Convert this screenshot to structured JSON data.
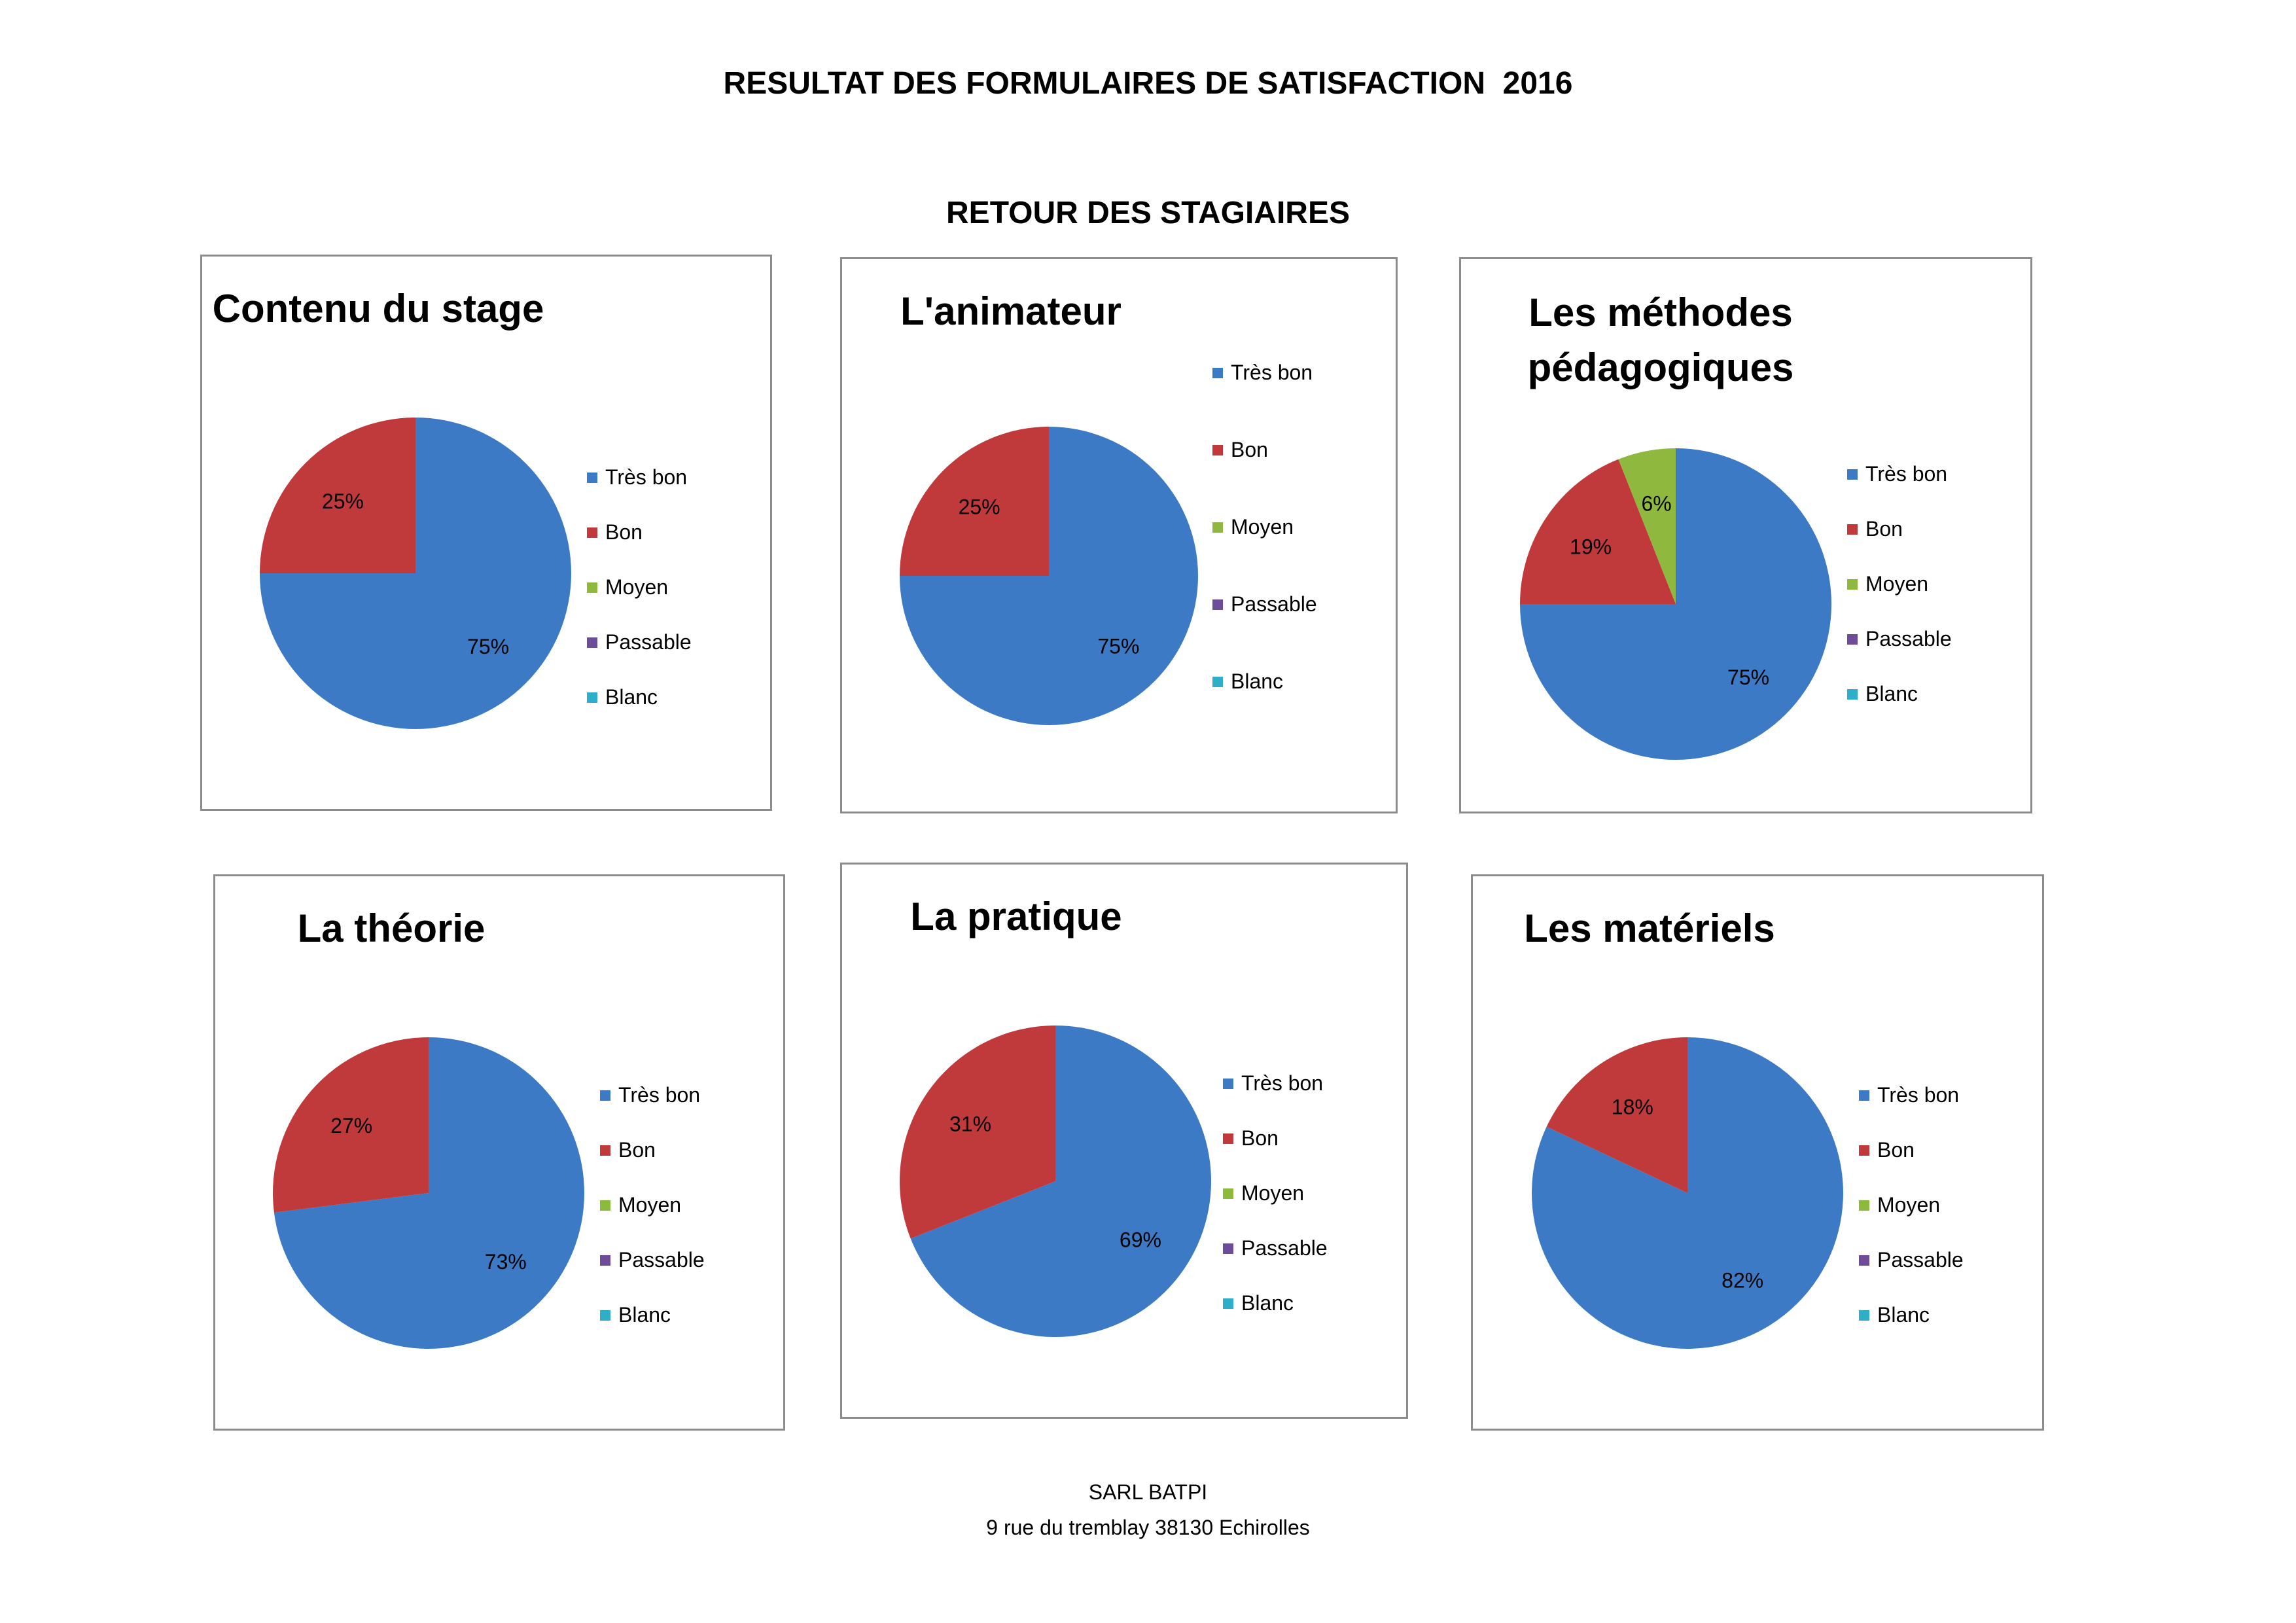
{
  "page": {
    "title": "RESULTAT DES FORMULAIRES DE SATISFACTION  2016",
    "subtitle": "RETOUR DES STAGIAIRES",
    "footer_line1": "SARL BATPI",
    "footer_line2": "9 rue du tremblay 38130 Echirolles"
  },
  "legend_colors": {
    "Très bon": "#3d7ac6",
    "Bon": "#c0393b",
    "Moyen": "#8fb83f",
    "Passable": "#6e4c9a",
    "Blanc": "#2eaec9"
  },
  "chart_data": [
    {
      "type": "pie",
      "title": "Contenu du stage",
      "categories": [
        "Très bon",
        "Bon",
        "Moyen",
        "Passable",
        "Blanc"
      ],
      "values": [
        75,
        25,
        0,
        0,
        0
      ],
      "labels": [
        "75%",
        "25%",
        "",
        "",
        ""
      ],
      "legend_position": "right"
    },
    {
      "type": "pie",
      "title": "L'animateur",
      "categories": [
        "Très bon",
        "Bon",
        "Moyen",
        "Passable",
        "Blanc"
      ],
      "values": [
        75,
        25,
        0,
        0,
        0
      ],
      "labels": [
        "75%",
        "25%",
        "",
        "",
        ""
      ],
      "legend_position": "right"
    },
    {
      "type": "pie",
      "title": "Les méthodes pédagogiques",
      "categories": [
        "Très bon",
        "Bon",
        "Moyen",
        "Passable",
        "Blanc"
      ],
      "values": [
        75,
        19,
        6,
        0,
        0
      ],
      "labels": [
        "75%",
        "19%",
        "6%",
        "",
        ""
      ],
      "legend_position": "right"
    },
    {
      "type": "pie",
      "title": "La théorie",
      "categories": [
        "Très bon",
        "Bon",
        "Moyen",
        "Passable",
        "Blanc"
      ],
      "values": [
        73,
        27,
        0,
        0,
        0
      ],
      "labels": [
        "73%",
        "27%",
        "",
        "",
        ""
      ],
      "legend_position": "right"
    },
    {
      "type": "pie",
      "title": "La pratique",
      "categories": [
        "Très bon",
        "Bon",
        "Moyen",
        "Passable",
        "Blanc"
      ],
      "values": [
        69,
        31,
        0,
        0,
        0
      ],
      "labels": [
        "69%",
        "31%",
        "",
        "",
        ""
      ],
      "legend_position": "right"
    },
    {
      "type": "pie",
      "title": "Les matériels",
      "categories": [
        "Très bon",
        "Bon",
        "Moyen",
        "Passable",
        "Blanc"
      ],
      "values": [
        82,
        18,
        0,
        0,
        0
      ],
      "labels": [
        "82%",
        "18%",
        "",
        "",
        ""
      ],
      "legend_position": "right"
    }
  ]
}
